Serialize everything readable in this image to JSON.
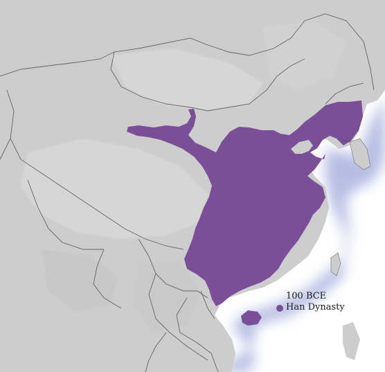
{
  "legend": {
    "date": "100 BCE",
    "label": "Han Dynasty"
  },
  "colors": {
    "territory": "#7a4f97",
    "land": "#cdcdcd",
    "land_light": "#dadada",
    "sea": "#ffffff",
    "coast_glow": "#a9b2de",
    "border": "#4a4a4a"
  }
}
